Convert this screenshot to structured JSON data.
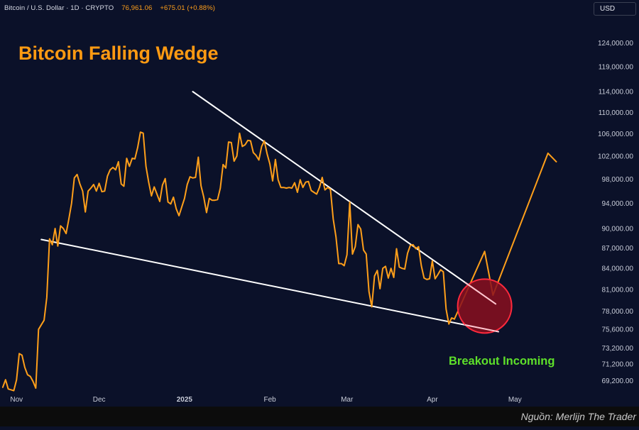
{
  "header": {
    "symbol": "Bitcoin / U.S. Dollar",
    "interval": "1D",
    "market": "CRYPTO",
    "last_price": "76,961.06",
    "change": "+675.01 (+0.88%)"
  },
  "currency_button": "USD",
  "title": "Bitcoin Falling Wedge",
  "annotation": "Breakout Incoming",
  "source": "Nguồn: Merlijn The Trader",
  "colors": {
    "background": "#0b1129",
    "price_line": "#ff9f1a",
    "title": "#ff9a12",
    "trendline": "#ffffff",
    "breakout_circle": "#8a0f1f",
    "breakout_circle_border": "#ff2a3d",
    "breakout_text": "#5ee02a",
    "axis_text": "#c8ccd8"
  },
  "chart_data": {
    "type": "line",
    "x_axis": {
      "tick_labels": [
        "Nov",
        "Dec",
        "2025",
        "Feb",
        "Mar",
        "Apr",
        "May"
      ],
      "tick_dates": [
        "2024-11-01",
        "2024-12-01",
        "2025-01-01",
        "2025-02-01",
        "2025-03-01",
        "2025-04-01",
        "2025-05-01"
      ],
      "range": [
        "2024-10-26",
        "2025-05-28"
      ]
    },
    "y_axis": {
      "scale": "log",
      "position": "right",
      "tick_labels": [
        "124,000.00",
        "119,000.00",
        "114,000.00",
        "110,000.00",
        "106,000.00",
        "102,000.00",
        "98,000.00",
        "94,000.00",
        "90,000.00",
        "87,000.00",
        "84,000.00",
        "81,000.00",
        "78,000.00",
        "75,600.00",
        "73,200.00",
        "71,200.00",
        "69,200.00"
      ],
      "tick_values": [
        124000,
        119000,
        114000,
        110000,
        106000,
        102000,
        98000,
        94000,
        90000,
        87000,
        84000,
        81000,
        78000,
        75600,
        73200,
        71200,
        69200
      ],
      "range": [
        67800,
        130000
      ]
    },
    "grid": false,
    "series": [
      {
        "style": "price",
        "points": [
          [
            "2024-10-27",
            68400
          ],
          [
            "2024-10-28",
            69300
          ],
          [
            "2024-10-29",
            68200
          ],
          [
            "2024-10-31",
            68000
          ],
          [
            "2024-11-01",
            69300
          ],
          [
            "2024-11-02",
            72500
          ],
          [
            "2024-11-03",
            72300
          ],
          [
            "2024-11-04",
            70800
          ],
          [
            "2024-11-05",
            69900
          ],
          [
            "2024-11-06",
            69700
          ],
          [
            "2024-11-07",
            69100
          ],
          [
            "2024-11-08",
            68300
          ],
          [
            "2024-11-09",
            75600
          ],
          [
            "2024-11-10",
            76200
          ],
          [
            "2024-11-11",
            76800
          ],
          [
            "2024-11-12",
            79900
          ],
          [
            "2024-11-13",
            88400
          ],
          [
            "2024-11-14",
            87500
          ],
          [
            "2024-11-15",
            90000
          ],
          [
            "2024-11-16",
            87300
          ],
          [
            "2024-11-17",
            90400
          ],
          [
            "2024-11-18",
            90000
          ],
          [
            "2024-11-19",
            89200
          ],
          [
            "2024-11-20",
            91500
          ],
          [
            "2024-11-21",
            94000
          ],
          [
            "2024-11-22",
            98200
          ],
          [
            "2024-11-23",
            98800
          ],
          [
            "2024-11-24",
            97200
          ],
          [
            "2024-11-25",
            96000
          ],
          [
            "2024-11-26",
            92600
          ],
          [
            "2024-11-27",
            96000
          ],
          [
            "2024-11-28",
            96500
          ],
          [
            "2024-11-29",
            97100
          ],
          [
            "2024-11-30",
            96000
          ],
          [
            "2024-12-01",
            97300
          ],
          [
            "2024-12-02",
            95900
          ],
          [
            "2024-12-03",
            96000
          ],
          [
            "2024-12-04",
            98500
          ],
          [
            "2024-12-05",
            99600
          ],
          [
            "2024-12-06",
            100000
          ],
          [
            "2024-12-07",
            99600
          ],
          [
            "2024-12-08",
            101000
          ],
          [
            "2024-12-09",
            97200
          ],
          [
            "2024-12-10",
            96800
          ],
          [
            "2024-12-11",
            101600
          ],
          [
            "2024-12-12",
            100200
          ],
          [
            "2024-12-13",
            101600
          ],
          [
            "2024-12-14",
            101500
          ],
          [
            "2024-12-15",
            103500
          ],
          [
            "2024-12-16",
            106300
          ],
          [
            "2024-12-17",
            106100
          ],
          [
            "2024-12-18",
            100200
          ],
          [
            "2024-12-19",
            97500
          ],
          [
            "2024-12-20",
            95200
          ],
          [
            "2024-12-21",
            96700
          ],
          [
            "2024-12-22",
            95500
          ],
          [
            "2024-12-23",
            94300
          ],
          [
            "2024-12-24",
            97000
          ],
          [
            "2024-12-25",
            98100
          ],
          [
            "2024-12-26",
            94200
          ],
          [
            "2024-12-27",
            93900
          ],
          [
            "2024-12-28",
            95000
          ],
          [
            "2024-12-29",
            93100
          ],
          [
            "2024-12-30",
            92000
          ],
          [
            "2024-12-31",
            93400
          ],
          [
            "2025-01-01",
            94800
          ],
          [
            "2025-01-02",
            97100
          ],
          [
            "2025-01-03",
            98400
          ],
          [
            "2025-01-04",
            98200
          ],
          [
            "2025-01-05",
            98300
          ],
          [
            "2025-01-06",
            101800
          ],
          [
            "2025-01-07",
            96900
          ],
          [
            "2025-01-08",
            95000
          ],
          [
            "2025-01-09",
            92500
          ],
          [
            "2025-01-10",
            94800
          ],
          [
            "2025-01-11",
            94500
          ],
          [
            "2025-01-12",
            94500
          ],
          [
            "2025-01-13",
            94600
          ],
          [
            "2025-01-14",
            96500
          ],
          [
            "2025-01-15",
            100500
          ],
          [
            "2025-01-16",
            99900
          ],
          [
            "2025-01-17",
            104500
          ],
          [
            "2025-01-18",
            104400
          ],
          [
            "2025-01-19",
            101100
          ],
          [
            "2025-01-20",
            102000
          ],
          [
            "2025-01-21",
            106100
          ],
          [
            "2025-01-22",
            103700
          ],
          [
            "2025-01-23",
            104000
          ],
          [
            "2025-01-24",
            104800
          ],
          [
            "2025-01-25",
            104700
          ],
          [
            "2025-01-26",
            102600
          ],
          [
            "2025-01-27",
            102100
          ],
          [
            "2025-01-28",
            101300
          ],
          [
            "2025-01-29",
            103700
          ],
          [
            "2025-01-30",
            104700
          ],
          [
            "2025-01-31",
            102400
          ],
          [
            "2025-02-01",
            100600
          ],
          [
            "2025-02-02",
            97700
          ],
          [
            "2025-02-03",
            101400
          ],
          [
            "2025-02-04",
            97900
          ],
          [
            "2025-02-05",
            96600
          ],
          [
            "2025-02-06",
            96600
          ],
          [
            "2025-02-07",
            96500
          ],
          [
            "2025-02-08",
            96600
          ],
          [
            "2025-02-09",
            96500
          ],
          [
            "2025-02-10",
            97400
          ],
          [
            "2025-02-11",
            95800
          ],
          [
            "2025-02-12",
            97900
          ],
          [
            "2025-02-13",
            96600
          ],
          [
            "2025-02-14",
            97500
          ],
          [
            "2025-02-15",
            97600
          ],
          [
            "2025-02-16",
            96100
          ],
          [
            "2025-02-17",
            95800
          ],
          [
            "2025-02-18",
            95500
          ],
          [
            "2025-02-19",
            96600
          ],
          [
            "2025-02-20",
            98300
          ],
          [
            "2025-02-21",
            96200
          ],
          [
            "2025-02-22",
            96600
          ],
          [
            "2025-02-23",
            96300
          ],
          [
            "2025-02-24",
            91500
          ],
          [
            "2025-02-25",
            88700
          ],
          [
            "2025-02-26",
            84700
          ],
          [
            "2025-02-27",
            84700
          ],
          [
            "2025-02-28",
            84400
          ],
          [
            "2025-03-01",
            86000
          ],
          [
            "2025-03-02",
            94200
          ],
          [
            "2025-03-03",
            86100
          ],
          [
            "2025-03-04",
            87200
          ],
          [
            "2025-03-05",
            90600
          ],
          [
            "2025-03-06",
            89900
          ],
          [
            "2025-03-07",
            86700
          ],
          [
            "2025-03-08",
            86100
          ],
          [
            "2025-03-09",
            80700
          ],
          [
            "2025-03-10",
            78600
          ],
          [
            "2025-03-11",
            82900
          ],
          [
            "2025-03-12",
            83700
          ],
          [
            "2025-03-13",
            81100
          ],
          [
            "2025-03-14",
            84000
          ],
          [
            "2025-03-15",
            84300
          ],
          [
            "2025-03-16",
            82600
          ],
          [
            "2025-03-17",
            84000
          ],
          [
            "2025-03-18",
            82700
          ],
          [
            "2025-03-19",
            86900
          ],
          [
            "2025-03-20",
            84200
          ],
          [
            "2025-03-21",
            84000
          ],
          [
            "2025-03-22",
            83900
          ],
          [
            "2025-03-23",
            86200
          ],
          [
            "2025-03-24",
            87400
          ],
          [
            "2025-03-25",
            87500
          ],
          [
            "2025-03-26",
            86900
          ],
          [
            "2025-03-27",
            87200
          ],
          [
            "2025-03-28",
            84400
          ],
          [
            "2025-03-29",
            82600
          ],
          [
            "2025-03-30",
            82400
          ],
          [
            "2025-03-31",
            82500
          ],
          [
            "2025-04-01",
            85100
          ],
          [
            "2025-04-02",
            82500
          ],
          [
            "2025-04-03",
            83100
          ],
          [
            "2025-04-04",
            83800
          ],
          [
            "2025-04-05",
            83500
          ],
          [
            "2025-04-06",
            78300
          ],
          [
            "2025-04-07",
            76300
          ],
          [
            "2025-04-08",
            77100
          ],
          [
            "2025-04-09",
            76961
          ]
        ]
      },
      {
        "style": "projection",
        "points": [
          [
            "2025-04-09",
            76961
          ],
          [
            "2025-04-20",
            86500
          ],
          [
            "2025-04-23",
            80200
          ],
          [
            "2025-05-13",
            102500
          ],
          [
            "2025-05-16",
            101000
          ]
        ]
      }
    ],
    "trendlines": [
      {
        "name": "upper",
        "from": [
          "2025-01-04",
          114000
        ],
        "to": [
          "2025-04-24",
          79000
        ]
      },
      {
        "name": "lower",
        "from": [
          "2024-11-10",
          88300
        ],
        "to": [
          "2025-04-25",
          75300
        ]
      }
    ],
    "highlight_circle": {
      "center": [
        "2025-04-20",
        78700
      ]
    }
  }
}
